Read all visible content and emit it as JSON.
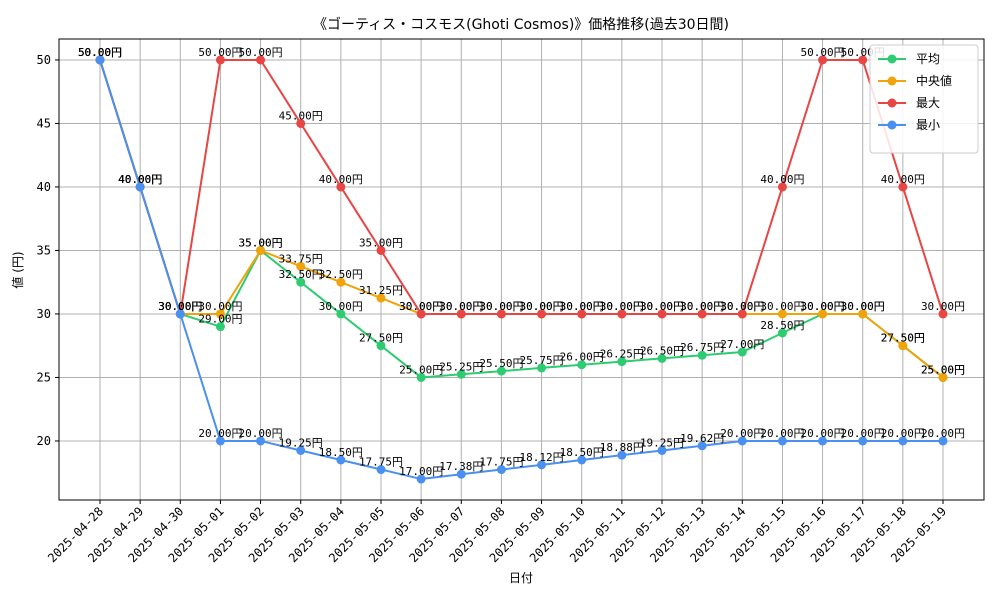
{
  "chart_data": {
    "type": "line",
    "title": "《ゴーティス・コスモス(Ghoti Cosmos)》価格推移(過去30日間)",
    "xlabel": "日付",
    "ylabel": "値 (円)",
    "ylim": [
      15.35,
      51.65
    ],
    "yticks": [
      20,
      25,
      30,
      35,
      40,
      45,
      50
    ],
    "grid": true,
    "legend_position": "top-right",
    "categories": [
      "2025-04-28",
      "2025-04-29",
      "2025-04-30",
      "2025-05-01",
      "2025-05-02",
      "2025-05-03",
      "2025-05-04",
      "2025-05-05",
      "2025-05-06",
      "2025-05-07",
      "2025-05-08",
      "2025-05-09",
      "2025-05-10",
      "2025-05-11",
      "2025-05-12",
      "2025-05-13",
      "2025-05-14",
      "2025-05-15",
      "2025-05-16",
      "2025-05-17",
      "2025-05-18",
      "2025-05-19"
    ],
    "series": [
      {
        "name": "平均",
        "color": "#2ecc71",
        "values": [
          50,
          40,
          30,
          29,
          35,
          32.5,
          30,
          27.5,
          25,
          25.25,
          25.5,
          25.75,
          26,
          26.25,
          26.5,
          26.75,
          27,
          28.5,
          30,
          30,
          27.5,
          25
        ],
        "labels": [
          "50.00円",
          "40.00円",
          "30.00円",
          "29.00円",
          "35.00円",
          "32.50円",
          "30.00円",
          "27.50円",
          "25.00円",
          "25.25円",
          "25.50円",
          "25.75円",
          "26.00円",
          "26.25円",
          "26.50円",
          "26.75円",
          "27.00円",
          "28.50円",
          "30.00円",
          "30.00円",
          "27.50円",
          "25.00円"
        ]
      },
      {
        "name": "中央値",
        "color": "#f0a30a",
        "values": [
          50,
          40,
          30,
          30,
          35,
          33.75,
          32.5,
          31.25,
          30,
          30,
          30,
          30,
          30,
          30,
          30,
          30,
          30,
          30,
          30,
          30,
          27.5,
          25
        ],
        "labels": [
          "50.00円",
          "40.00円",
          "30.00円",
          "30.00円",
          "35.00円",
          "33.75円",
          "32.50円",
          "31.25円",
          "30.00円",
          "30.00円",
          "30.00円",
          "30.00円",
          "30.00円",
          "30.00円",
          "30.00円",
          "30.00円",
          "30.00円",
          "30.00円",
          "30.00円",
          "30.00円",
          "27.50円",
          "25.00円"
        ]
      },
      {
        "name": "最大",
        "color": "#e84545",
        "values": [
          50,
          40,
          30,
          50,
          50,
          45,
          40,
          35,
          30,
          30,
          30,
          30,
          30,
          30,
          30,
          30,
          30,
          40,
          50,
          50,
          40,
          30
        ],
        "labels": [
          "50.00円",
          "40.00円",
          "30.00円",
          "50.00円",
          "50.00円",
          "45.00円",
          "40.00円",
          "35.00円",
          "30.00円",
          "30.00円",
          "30.00円",
          "30.00円",
          "30.00円",
          "30.00円",
          "30.00円",
          "30.00円",
          "30.00円",
          "40.00円",
          "50.00円",
          "50.00円",
          "40.00円",
          "30.00円"
        ]
      },
      {
        "name": "最小",
        "color": "#4a90f0",
        "values": [
          50,
          40,
          30,
          20,
          20,
          19.25,
          18.5,
          17.75,
          17,
          17.38,
          17.75,
          18.12,
          18.5,
          18.88,
          19.25,
          19.62,
          20,
          20,
          20,
          20,
          20,
          20
        ],
        "labels": [
          "50.00円",
          "40.00円",
          "30.00円",
          "20.00円",
          "20.00円",
          "19.25円",
          "18.50円",
          "17.75円",
          "17.00円",
          "17.38円",
          "17.75円",
          "18.12円",
          "18.50円",
          "18.88円",
          "19.25円",
          "19.62円",
          "20.00円",
          "20.00円",
          "20.00円",
          "20.00円",
          "20.00円",
          "20.00円"
        ]
      }
    ]
  }
}
